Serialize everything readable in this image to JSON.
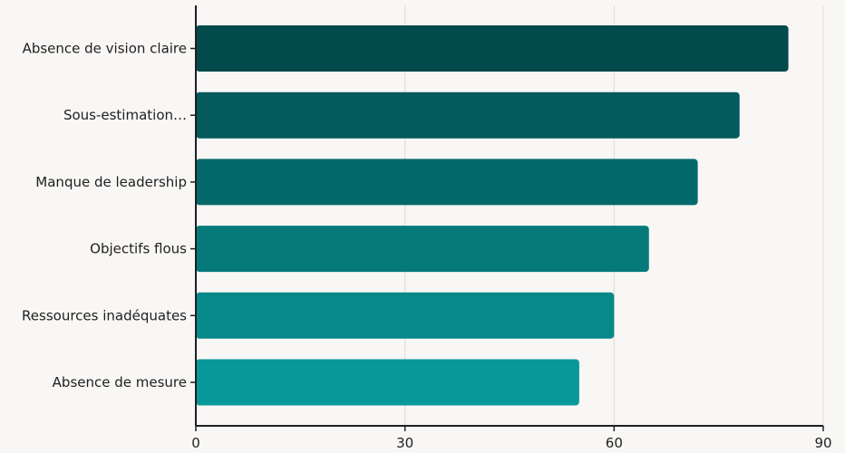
{
  "chart_data": {
    "type": "bar",
    "orientation": "horizontal",
    "categories": [
      "Absence de vision claire",
      "Sous-estimation…",
      "Manque de leadership",
      "Objectifs flous",
      "Ressources inadéquates",
      "Absence de mesure"
    ],
    "values": [
      85,
      78,
      72,
      65,
      60,
      55
    ],
    "xlim": [
      0,
      90
    ],
    "xticks": [
      "0",
      "30",
      "60",
      "90"
    ],
    "title": "",
    "xlabel": "",
    "ylabel": "",
    "grid": "vertical",
    "colors": [
      "#034a4c",
      "#045a5c",
      "#05696b",
      "#067a7b",
      "#07898a",
      "#08989a"
    ]
  }
}
